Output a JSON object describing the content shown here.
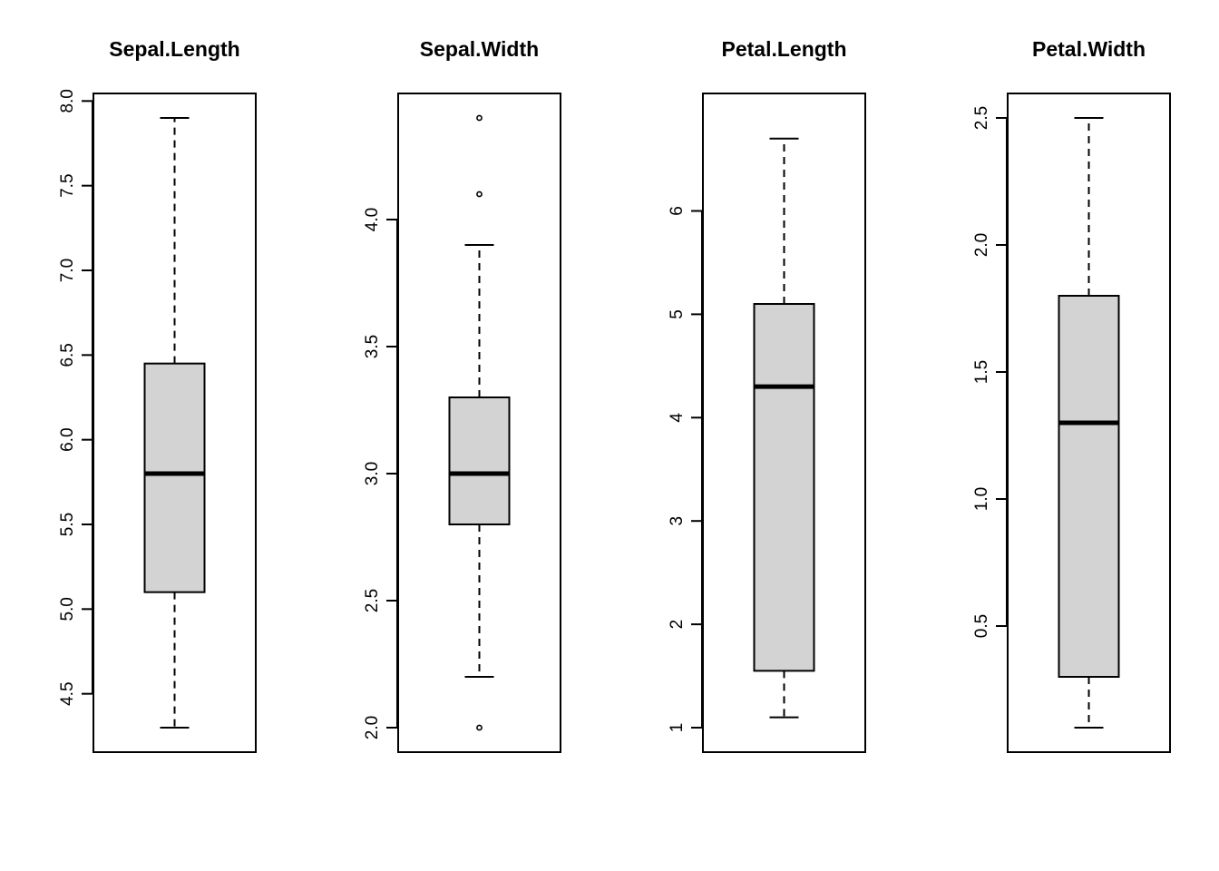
{
  "chart_data": [
    {
      "type": "box",
      "title": "Sepal.Length",
      "ylim": [
        4.3,
        7.9
      ],
      "yticks": [
        4.5,
        5.0,
        5.5,
        6.0,
        6.5,
        7.0,
        7.5,
        8.0
      ],
      "ytick_labels": [
        "4.5",
        "5.0",
        "5.5",
        "6.0",
        "6.5",
        "7.0",
        "7.5",
        "8.0"
      ],
      "stats": {
        "whisker_low": 4.3,
        "q1": 5.1,
        "median": 5.8,
        "q3": 6.45,
        "whisker_high": 7.9
      },
      "outliers": []
    },
    {
      "type": "box",
      "title": "Sepal.Width",
      "ylim": [
        2.0,
        4.4
      ],
      "yticks": [
        2.0,
        2.5,
        3.0,
        3.5,
        4.0
      ],
      "ytick_labels": [
        "2.0",
        "2.5",
        "3.0",
        "3.5",
        "4.0"
      ],
      "stats": {
        "whisker_low": 2.2,
        "q1": 2.8,
        "median": 3.0,
        "q3": 3.3,
        "whisker_high": 3.9
      },
      "outliers": [
        2.0,
        4.1,
        4.4
      ]
    },
    {
      "type": "box",
      "title": "Petal.Length",
      "ylim": [
        1.0,
        6.9
      ],
      "yticks": [
        1,
        2,
        3,
        4,
        5,
        6
      ],
      "ytick_labels": [
        "1",
        "2",
        "3",
        "4",
        "5",
        "6"
      ],
      "stats": {
        "whisker_low": 1.1,
        "q1": 1.55,
        "median": 4.3,
        "q3": 5.1,
        "whisker_high": 6.7
      },
      "outliers": []
    },
    {
      "type": "box",
      "title": "Petal.Width",
      "ylim": [
        0.1,
        2.5
      ],
      "yticks": [
        0.5,
        1.0,
        1.5,
        2.0,
        2.5
      ],
      "ytick_labels": [
        "0.5",
        "1.0",
        "1.5",
        "2.0",
        "2.5"
      ],
      "stats": {
        "whisker_low": 0.1,
        "q1": 0.3,
        "median": 1.3,
        "q3": 1.8,
        "whisker_high": 2.5
      },
      "outliers": []
    }
  ],
  "colors": {
    "box_fill": "#d3d3d3",
    "stroke": "#000000",
    "background": "#ffffff"
  }
}
